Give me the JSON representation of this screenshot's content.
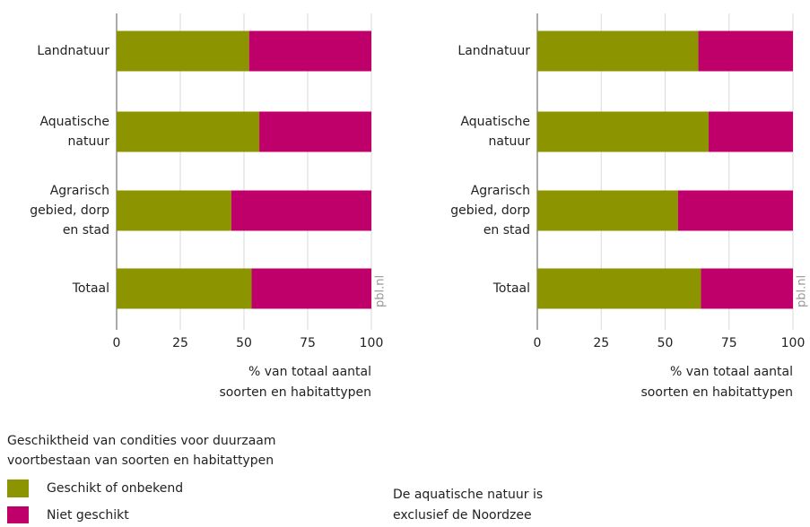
{
  "chart_data": [
    {
      "type": "bar",
      "orientation": "horizontal",
      "stacked": true,
      "categories": [
        "Landnatuur",
        "Aquatische natuur",
        "Agrarisch gebied, dorp en stad",
        "Totaal"
      ],
      "series": [
        {
          "name": "Geschikt of onbekend",
          "color": "#8c9400",
          "values": [
            52,
            56,
            45,
            53
          ]
        },
        {
          "name": "Niet geschikt",
          "color": "#c0006a",
          "values": [
            48,
            44,
            55,
            47
          ]
        }
      ],
      "xlim": [
        0,
        100
      ],
      "xticks": [
        0,
        25,
        50,
        75,
        100
      ],
      "grid": true,
      "xlabel": "% van totaal aantal soorten en habitattypen",
      "source": "pbl.nl"
    },
    {
      "type": "bar",
      "orientation": "horizontal",
      "stacked": true,
      "categories": [
        "Landnatuur",
        "Aquatische natuur",
        "Agrarisch gebied, dorp en stad",
        "Totaal"
      ],
      "series": [
        {
          "color": "#8c9400",
          "values": [
            63,
            67,
            55,
            64
          ]
        },
        {
          "color": "#c0006a",
          "values": [
            37,
            33,
            45,
            36
          ]
        }
      ],
      "xlim": [
        0,
        100
      ],
      "xticks": [
        0,
        25,
        50,
        75,
        100
      ],
      "grid": true,
      "xlabel": "% van totaal aantal soorten en habitattypen",
      "source": "pbl.nl"
    }
  ],
  "legend_title": "Geschiktheid van condities voor duurzaam voortbestaan van soorten en habitattypen",
  "note": "De aquatische natuur is exclusief de Noordzee"
}
